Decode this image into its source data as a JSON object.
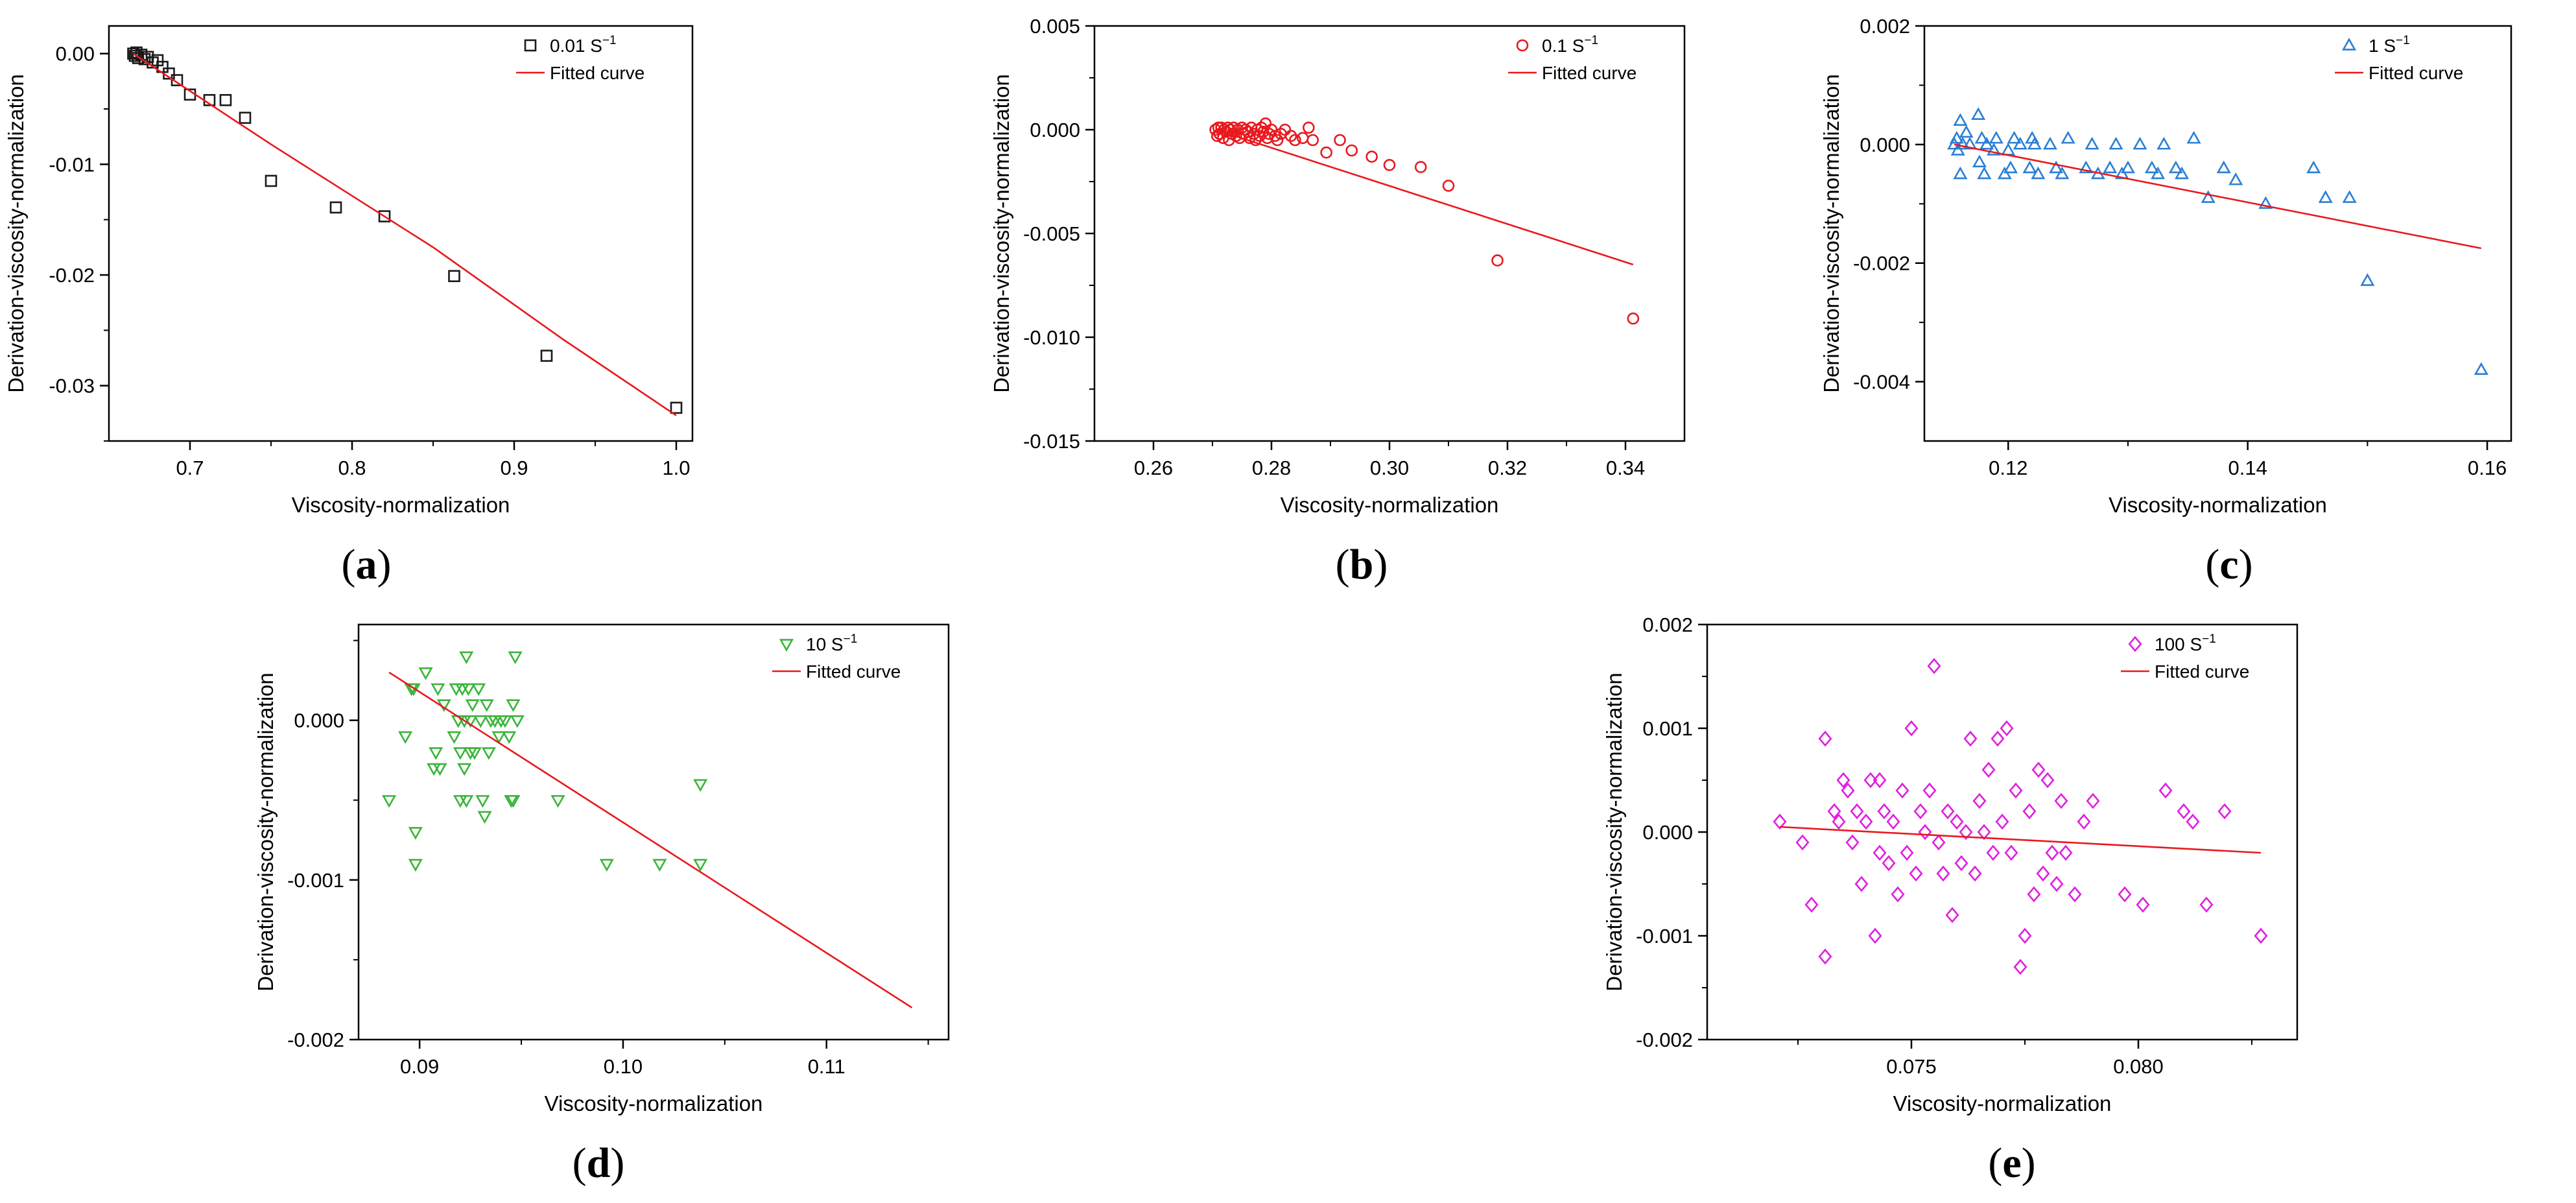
{
  "chart_data": [
    {
      "id": "a",
      "type": "scatter",
      "panel_label": "a",
      "xlabel": "Viscosity-normalization",
      "ylabel": "Derivation-viscosity-normalization",
      "xlim": [
        0.65,
        1.01
      ],
      "ylim": [
        -0.035,
        0.0025
      ],
      "xticks": [
        0.7,
        0.8,
        0.9,
        1.0
      ],
      "xtick_labels": [
        "0.7",
        "0.8",
        "0.9",
        "1.0"
      ],
      "yticks": [
        -0.03,
        -0.02,
        -0.01,
        0.0
      ],
      "ytick_labels": [
        "-0.03",
        "-0.02",
        "-0.01",
        "0.00"
      ],
      "marker": "square",
      "marker_color": "#1a1a1a",
      "fit_color": "#e8191f",
      "legend": {
        "series_label": "0.01 S",
        "series_sup": "−1",
        "fit_label": "Fitted curve"
      },
      "points": [
        [
          0.665,
          0.0
        ],
        [
          0.666,
          -0.0002
        ],
        [
          0.667,
          0.0001
        ],
        [
          0.668,
          -0.0004
        ],
        [
          0.67,
          -0.0001
        ],
        [
          0.672,
          -0.0005
        ],
        [
          0.674,
          -0.0003
        ],
        [
          0.677,
          -0.0008
        ],
        [
          0.68,
          -0.0006
        ],
        [
          0.683,
          -0.0012
        ],
        [
          0.687,
          -0.0018
        ],
        [
          0.692,
          -0.0024
        ],
        [
          0.7,
          -0.0037
        ],
        [
          0.712,
          -0.0042
        ],
        [
          0.722,
          -0.0042
        ],
        [
          0.734,
          -0.0058
        ],
        [
          0.75,
          -0.0115
        ],
        [
          0.79,
          -0.0139
        ],
        [
          0.82,
          -0.0147
        ],
        [
          0.863,
          -0.0201
        ],
        [
          0.92,
          -0.0273
        ],
        [
          1.0,
          -0.032
        ]
      ],
      "fit": [
        [
          0.665,
          0.0
        ],
        [
          0.75,
          -0.0082
        ],
        [
          0.85,
          -0.0175
        ],
        [
          0.93,
          -0.0258
        ],
        [
          1.0,
          -0.0327
        ]
      ]
    },
    {
      "id": "b",
      "type": "scatter",
      "panel_label": "b",
      "xlabel": "Viscosity-normalization",
      "ylabel": "Derivation-viscosity-normalization",
      "xlim": [
        0.25,
        0.35
      ],
      "ylim": [
        -0.015,
        0.005
      ],
      "xticks": [
        0.26,
        0.28,
        0.3,
        0.32,
        0.34
      ],
      "xtick_labels": [
        "0.26",
        "0.28",
        "0.30",
        "0.32",
        "0.34"
      ],
      "yticks": [
        -0.015,
        -0.01,
        -0.005,
        0.0,
        0.005
      ],
      "ytick_labels": [
        "-0.015",
        "-0.010",
        "-0.005",
        "0.000",
        "0.005"
      ],
      "marker": "circle",
      "marker_color": "#e8191f",
      "fit_color": "#e8191f",
      "legend": {
        "series_label": "0.1 S",
        "series_sup": "−1",
        "fit_label": "Fitted curve"
      },
      "points": [
        [
          0.2705,
          0.0
        ],
        [
          0.2708,
          -0.0003
        ],
        [
          0.271,
          0.0001
        ],
        [
          0.2712,
          -0.0002
        ],
        [
          0.2715,
          0.0001
        ],
        [
          0.2718,
          -0.0004
        ],
        [
          0.272,
          0.0
        ],
        [
          0.2723,
          -0.0001
        ],
        [
          0.2726,
          0.0001
        ],
        [
          0.2728,
          -0.0005
        ],
        [
          0.273,
          0.0
        ],
        [
          0.2733,
          -0.0002
        ],
        [
          0.2736,
          0.0001
        ],
        [
          0.274,
          -0.0003
        ],
        [
          0.2743,
          0.0
        ],
        [
          0.2746,
          -0.0004
        ],
        [
          0.275,
          0.0001
        ],
        [
          0.2753,
          -0.0002
        ],
        [
          0.2756,
          0.0
        ],
        [
          0.276,
          -0.0001
        ],
        [
          0.2763,
          -0.0004
        ],
        [
          0.2766,
          0.0001
        ],
        [
          0.277,
          -0.0002
        ],
        [
          0.2773,
          -0.0005
        ],
        [
          0.2776,
          0.0
        ],
        [
          0.278,
          -0.0003
        ],
        [
          0.2783,
          0.0001
        ],
        [
          0.2786,
          -0.0001
        ],
        [
          0.279,
          0.0003
        ],
        [
          0.2793,
          -0.0004
        ],
        [
          0.2796,
          -0.0002
        ],
        [
          0.28,
          0.0
        ],
        [
          0.2806,
          -0.0003
        ],
        [
          0.281,
          -0.0005
        ],
        [
          0.2816,
          -0.0002
        ],
        [
          0.2823,
          0.0
        ],
        [
          0.2833,
          -0.0003
        ],
        [
          0.284,
          -0.0005
        ],
        [
          0.2853,
          -0.0004
        ],
        [
          0.2863,
          0.0001
        ],
        [
          0.287,
          -0.0005
        ],
        [
          0.2893,
          -0.0011
        ],
        [
          0.2916,
          -0.0005
        ],
        [
          0.2936,
          -0.001
        ],
        [
          0.297,
          -0.0013
        ],
        [
          0.3,
          -0.0017
        ],
        [
          0.3053,
          -0.0018
        ],
        [
          0.31,
          -0.0027
        ],
        [
          0.3183,
          -0.0063
        ],
        [
          0.3413,
          -0.0091
        ]
      ],
      "fit": [
        [
          0.2705,
          0.0
        ],
        [
          0.3413,
          -0.0065
        ]
      ]
    },
    {
      "id": "c",
      "type": "scatter",
      "panel_label": "c",
      "xlabel": "Viscosity-normalization",
      "ylabel": "Derivation-viscosity-normalization",
      "xlim": [
        0.113,
        0.162
      ],
      "ylim": [
        -0.005,
        0.002
      ],
      "xticks": [
        0.12,
        0.14,
        0.16
      ],
      "xtick_labels": [
        "0.12",
        "0.14",
        "0.16"
      ],
      "yticks": [
        -0.004,
        -0.002,
        0.0,
        0.002
      ],
      "ytick_labels": [
        "-0.004",
        "-0.002",
        "0.000",
        "0.002"
      ],
      "marker": "triangle-up",
      "marker_color": "#2a7fd4",
      "fit_color": "#e8191f",
      "legend": {
        "series_label": "1 S",
        "series_sup": "−1",
        "fit_label": "Fitted curve"
      },
      "points": [
        [
          0.1155,
          0.0
        ],
        [
          0.1157,
          0.0001
        ],
        [
          0.1158,
          -0.0001
        ],
        [
          0.116,
          0.0004
        ],
        [
          0.116,
          -0.0005
        ],
        [
          0.1162,
          0.0
        ],
        [
          0.1165,
          0.0002
        ],
        [
          0.1168,
          0.0
        ],
        [
          0.1175,
          0.0005
        ],
        [
          0.1176,
          -0.0003
        ],
        [
          0.1178,
          0.0001
        ],
        [
          0.118,
          -0.0005
        ],
        [
          0.1182,
          0.0
        ],
        [
          0.1188,
          -0.0001
        ],
        [
          0.119,
          0.0001
        ],
        [
          0.1197,
          -0.0005
        ],
        [
          0.12,
          -0.0001
        ],
        [
          0.1202,
          -0.0004
        ],
        [
          0.1205,
          0.0001
        ],
        [
          0.121,
          0.0
        ],
        [
          0.1218,
          -0.0004
        ],
        [
          0.122,
          0.0001
        ],
        [
          0.1222,
          0.0
        ],
        [
          0.1225,
          -0.0005
        ],
        [
          0.1235,
          0.0
        ],
        [
          0.124,
          -0.0004
        ],
        [
          0.1245,
          -0.0005
        ],
        [
          0.125,
          0.0001
        ],
        [
          0.1265,
          -0.0004
        ],
        [
          0.127,
          0.0
        ],
        [
          0.1275,
          -0.0005
        ],
        [
          0.1285,
          -0.0004
        ],
        [
          0.129,
          0.0
        ],
        [
          0.1295,
          -0.0005
        ],
        [
          0.13,
          -0.0004
        ],
        [
          0.131,
          0.0
        ],
        [
          0.132,
          -0.0004
        ],
        [
          0.1325,
          -0.0005
        ],
        [
          0.133,
          0.0
        ],
        [
          0.134,
          -0.0004
        ],
        [
          0.1345,
          -0.0005
        ],
        [
          0.1355,
          0.0001
        ],
        [
          0.1367,
          -0.0009
        ],
        [
          0.138,
          -0.0004
        ],
        [
          0.139,
          -0.0006
        ],
        [
          0.1415,
          -0.001
        ],
        [
          0.1455,
          -0.0004
        ],
        [
          0.1465,
          -0.0009
        ],
        [
          0.1485,
          -0.0009
        ],
        [
          0.15,
          -0.0023
        ],
        [
          0.1595,
          -0.0038
        ]
      ],
      "fit": [
        [
          0.1155,
          0.0
        ],
        [
          0.1595,
          -0.00175
        ]
      ]
    },
    {
      "id": "d",
      "type": "scatter",
      "panel_label": "d",
      "xlabel": "Viscosity-normalization",
      "ylabel": "Derivation-viscosity-normalization",
      "xlim": [
        0.087,
        0.116
      ],
      "ylim": [
        -0.002,
        0.0006
      ],
      "xticks": [
        0.09,
        0.1,
        0.11
      ],
      "xtick_labels": [
        "0.09",
        "0.10",
        "0.11"
      ],
      "yticks": [
        -0.002,
        -0.001,
        0.0
      ],
      "ytick_labels": [
        "-0.002",
        "-0.001",
        "0.000"
      ],
      "marker": "triangle-down",
      "marker_color": "#3ab43a",
      "fit_color": "#e8191f",
      "legend": {
        "series_label": "10  S",
        "series_sup": "−1",
        "fit_label": "Fitted curve"
      },
      "points": [
        [
          0.0885,
          -0.0005
        ],
        [
          0.0893,
          -0.0001
        ],
        [
          0.0896,
          0.0002
        ],
        [
          0.0897,
          0.0002
        ],
        [
          0.0898,
          -0.0007
        ],
        [
          0.0898,
          -0.0009
        ],
        [
          0.0903,
          0.0003
        ],
        [
          0.0907,
          -0.0003
        ],
        [
          0.0908,
          -0.0002
        ],
        [
          0.0909,
          0.0002
        ],
        [
          0.091,
          -0.0003
        ],
        [
          0.0912,
          0.0001
        ],
        [
          0.0917,
          -0.0001
        ],
        [
          0.0918,
          0.0002
        ],
        [
          0.0919,
          0.0
        ],
        [
          0.092,
          -0.0002
        ],
        [
          0.092,
          -0.0005
        ],
        [
          0.0921,
          0.0002
        ],
        [
          0.0922,
          0.0
        ],
        [
          0.0922,
          -0.0003
        ],
        [
          0.0923,
          0.0004
        ],
        [
          0.0923,
          -0.0005
        ],
        [
          0.0924,
          0.0002
        ],
        [
          0.0925,
          -0.0002
        ],
        [
          0.0925,
          0.0
        ],
        [
          0.0926,
          0.0001
        ],
        [
          0.0927,
          -0.0002
        ],
        [
          0.0929,
          0.0002
        ],
        [
          0.093,
          0.0
        ],
        [
          0.0931,
          -0.0005
        ],
        [
          0.0932,
          -0.0006
        ],
        [
          0.0933,
          0.0001
        ],
        [
          0.0934,
          -0.0002
        ],
        [
          0.0935,
          0.0
        ],
        [
          0.0937,
          0.0
        ],
        [
          0.0939,
          -0.0001
        ],
        [
          0.094,
          0.0
        ],
        [
          0.0942,
          0.0
        ],
        [
          0.0944,
          -0.0001
        ],
        [
          0.0945,
          -0.0005
        ],
        [
          0.0946,
          0.0001
        ],
        [
          0.0946,
          -0.0005
        ],
        [
          0.0947,
          0.0004
        ],
        [
          0.0948,
          0.0
        ],
        [
          0.0968,
          -0.0005
        ],
        [
          0.0992,
          -0.0009
        ],
        [
          0.1018,
          -0.0009
        ],
        [
          0.1038,
          -0.0009
        ],
        [
          0.1038,
          -0.0004
        ]
      ],
      "fit": [
        [
          0.0885,
          0.0003
        ],
        [
          0.1142,
          -0.0018
        ]
      ]
    },
    {
      "id": "e",
      "type": "scatter",
      "panel_label": "e",
      "xlabel": "Viscosity-normalization",
      "ylabel": "Derivation-viscosity-normalization",
      "xlim": [
        0.0705,
        0.0835
      ],
      "ylim": [
        -0.002,
        0.002
      ],
      "xticks": [
        0.075,
        0.08
      ],
      "xtick_labels": [
        "0.075",
        "0.080"
      ],
      "yticks": [
        -0.002,
        -0.001,
        0.0,
        0.001,
        0.002
      ],
      "ytick_labels": [
        "-0.002",
        "-0.001",
        "0.000",
        "0.001",
        "0.002"
      ],
      "marker": "diamond",
      "marker_color": "#e020e0",
      "fit_color": "#e8191f",
      "legend": {
        "series_label": "100 S",
        "series_sup": "−1",
        "fit_label": "Fitted curve"
      },
      "points": [
        [
          0.0721,
          0.0001
        ],
        [
          0.0726,
          -0.0001
        ],
        [
          0.0728,
          -0.0007
        ],
        [
          0.0731,
          0.0009
        ],
        [
          0.0731,
          -0.0012
        ],
        [
          0.0733,
          0.0002
        ],
        [
          0.0734,
          0.0001
        ],
        [
          0.0735,
          0.0005
        ],
        [
          0.0736,
          0.0004
        ],
        [
          0.0737,
          -0.0001
        ],
        [
          0.0738,
          0.0002
        ],
        [
          0.0739,
          -0.0005
        ],
        [
          0.074,
          0.0001
        ],
        [
          0.0741,
          0.0005
        ],
        [
          0.0742,
          -0.001
        ],
        [
          0.0743,
          -0.0002
        ],
        [
          0.0743,
          0.0005
        ],
        [
          0.0744,
          0.0002
        ],
        [
          0.0745,
          -0.0003
        ],
        [
          0.0746,
          0.0001
        ],
        [
          0.0747,
          -0.0006
        ],
        [
          0.0748,
          0.0004
        ],
        [
          0.0749,
          -0.0002
        ],
        [
          0.075,
          0.001
        ],
        [
          0.0751,
          -0.0004
        ],
        [
          0.0752,
          0.0002
        ],
        [
          0.0753,
          0.0
        ],
        [
          0.0754,
          0.0004
        ],
        [
          0.0755,
          0.0016
        ],
        [
          0.0756,
          -0.0001
        ],
        [
          0.0757,
          -0.0004
        ],
        [
          0.0758,
          0.0002
        ],
        [
          0.0759,
          -0.0008
        ],
        [
          0.076,
          0.0001
        ],
        [
          0.0761,
          -0.0003
        ],
        [
          0.0762,
          0.0
        ],
        [
          0.0763,
          0.0009
        ],
        [
          0.0764,
          -0.0004
        ],
        [
          0.0765,
          0.0003
        ],
        [
          0.0766,
          0.0
        ],
        [
          0.0767,
          0.0006
        ],
        [
          0.0768,
          -0.0002
        ],
        [
          0.0769,
          0.0009
        ],
        [
          0.077,
          0.0001
        ],
        [
          0.0771,
          0.001
        ],
        [
          0.0772,
          -0.0002
        ],
        [
          0.0773,
          0.0004
        ],
        [
          0.0774,
          -0.0013
        ],
        [
          0.0775,
          -0.001
        ],
        [
          0.0776,
          0.0002
        ],
        [
          0.0777,
          -0.0006
        ],
        [
          0.0778,
          0.0006
        ],
        [
          0.0779,
          -0.0004
        ],
        [
          0.078,
          0.0005
        ],
        [
          0.0781,
          -0.0002
        ],
        [
          0.0782,
          -0.0005
        ],
        [
          0.0783,
          0.0003
        ],
        [
          0.0784,
          -0.0002
        ],
        [
          0.0786,
          -0.0006
        ],
        [
          0.0788,
          0.0001
        ],
        [
          0.079,
          0.0003
        ],
        [
          0.0797,
          -0.0006
        ],
        [
          0.0801,
          -0.0007
        ],
        [
          0.0806,
          0.0004
        ],
        [
          0.081,
          0.0002
        ],
        [
          0.0812,
          0.0001
        ],
        [
          0.0815,
          -0.0007
        ],
        [
          0.0819,
          0.0002
        ],
        [
          0.0827,
          -0.001
        ]
      ],
      "fit": [
        [
          0.0721,
          5e-05
        ],
        [
          0.0827,
          -0.0002
        ]
      ]
    }
  ]
}
